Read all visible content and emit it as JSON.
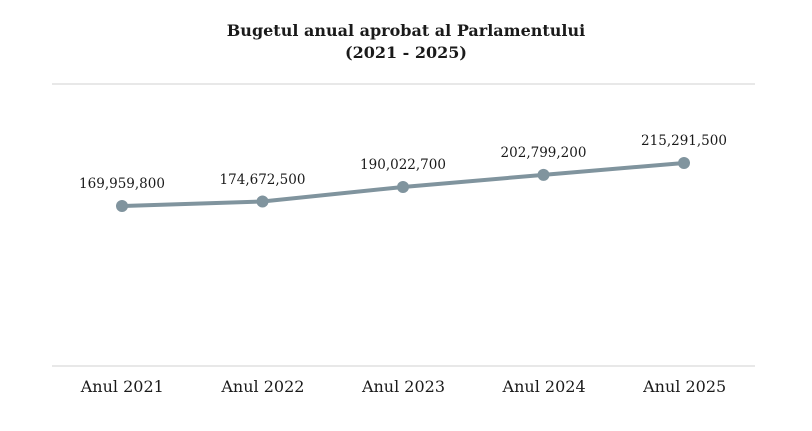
{
  "chart_data": {
    "type": "line",
    "title": "Bugetul anual aprobat al Parlamentului",
    "subtitle": "(2021 - 2025)",
    "categories": [
      "Anul 2021",
      "Anul 2022",
      "Anul 2023",
      "Anul 2024",
      "Anul 2025"
    ],
    "values": [
      169959800,
      174672500,
      190022700,
      202799200,
      215291500
    ],
    "value_labels": [
      "169,959,800",
      "174,672,500",
      "190,022,700",
      "202,799,200",
      "215,291,500"
    ],
    "xlabel": "",
    "ylabel": "",
    "grid": false,
    "legend": "none",
    "line_color": "#80949E",
    "divider_color": "#e8e8e8",
    "text_color": "#1a1a1a"
  }
}
